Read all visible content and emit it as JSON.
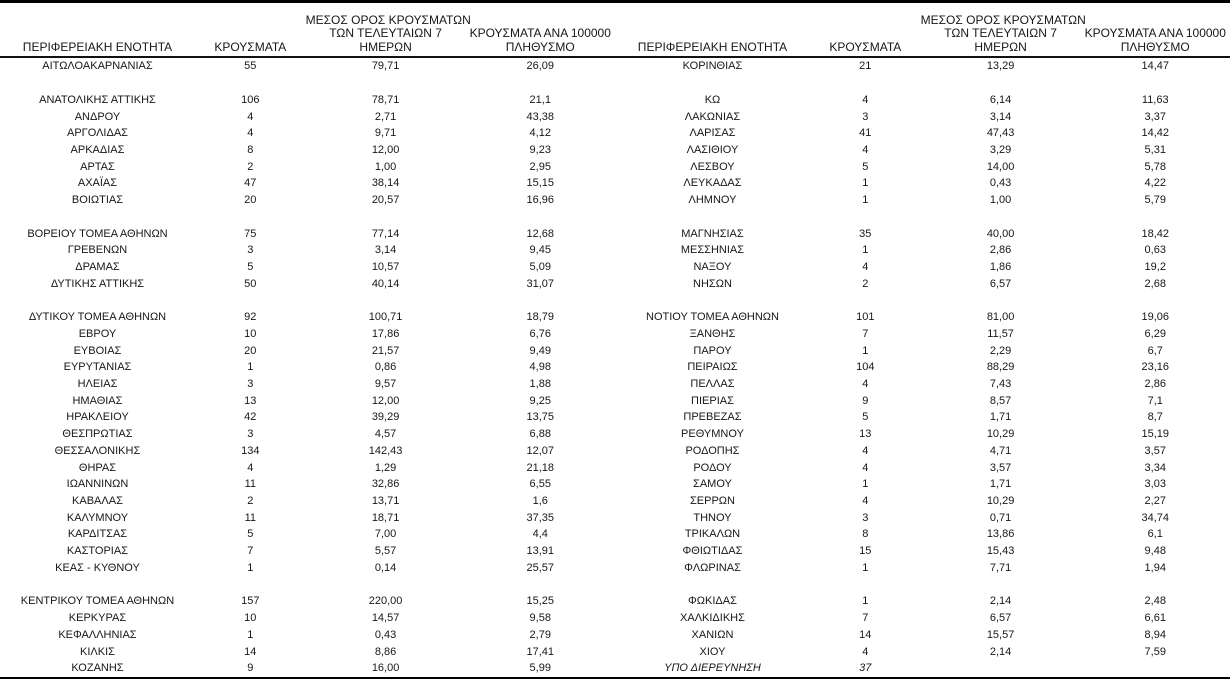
{
  "columns": {
    "region": "ΠΕΡΙΦΕΡΕΙΑΚΗ ΕΝΟΤΗΤΑ",
    "cases": "ΚΡΟΥΣΜΑΤΑ",
    "avg7_lines": [
      "ΜΕΣΟΣ ΟΡΟΣ ΚΡΟΥΣΜΑΤΩΝ",
      "ΤΩΝ ΤΕΛΕΥΤΑΙΩΝ 7",
      "ΗΜΕΡΩΝ"
    ],
    "per100k_lines": [
      "ΚΡΟΥΣΜΑΤΑ ΑΝΑ 100000",
      "ΠΛΗΘΥΣΜΟ"
    ]
  },
  "left_table": {
    "rows": [
      {
        "region": "ΑΙΤΩΛΟΑΚΑΡΝΑΝΙΑΣ",
        "cases": "55",
        "avg7": "79,71",
        "per100k": "26,09"
      },
      {
        "region": "",
        "cases": "",
        "avg7": "",
        "per100k": ""
      },
      {
        "region": "ΑΝΑΤΟΛΙΚΗΣ ΑΤΤΙΚΗΣ",
        "cases": "106",
        "avg7": "78,71",
        "per100k": "21,1"
      },
      {
        "region": "ΑΝΔΡΟΥ",
        "cases": "4",
        "avg7": "2,71",
        "per100k": "43,38"
      },
      {
        "region": "ΑΡΓΟΛΙΔΑΣ",
        "cases": "4",
        "avg7": "9,71",
        "per100k": "4,12"
      },
      {
        "region": "ΑΡΚΑΔΙΑΣ",
        "cases": "8",
        "avg7": "12,00",
        "per100k": "9,23"
      },
      {
        "region": "ΑΡΤΑΣ",
        "cases": "2",
        "avg7": "1,00",
        "per100k": "2,95"
      },
      {
        "region": "ΑΧΑΪΑΣ",
        "cases": "47",
        "avg7": "38,14",
        "per100k": "15,15"
      },
      {
        "region": "ΒΟΙΩΤΙΑΣ",
        "cases": "20",
        "avg7": "20,57",
        "per100k": "16,96"
      },
      {
        "region": "",
        "cases": "",
        "avg7": "",
        "per100k": ""
      },
      {
        "region": "ΒΟΡΕΙΟΥ ΤΟΜΕΑ ΑΘΗΝΩΝ",
        "cases": "75",
        "avg7": "77,14",
        "per100k": "12,68"
      },
      {
        "region": "ΓΡΕΒΕΝΩΝ",
        "cases": "3",
        "avg7": "3,14",
        "per100k": "9,45"
      },
      {
        "region": "ΔΡΑΜΑΣ",
        "cases": "5",
        "avg7": "10,57",
        "per100k": "5,09"
      },
      {
        "region": "ΔΥΤΙΚΗΣ ΑΤΤΙΚΗΣ",
        "cases": "50",
        "avg7": "40,14",
        "per100k": "31,07"
      },
      {
        "region": "",
        "cases": "",
        "avg7": "",
        "per100k": ""
      },
      {
        "region": "ΔΥΤΙΚΟΥ ΤΟΜΕΑ ΑΘΗΝΩΝ",
        "cases": "92",
        "avg7": "100,71",
        "per100k": "18,79"
      },
      {
        "region": "ΕΒΡΟΥ",
        "cases": "10",
        "avg7": "17,86",
        "per100k": "6,76"
      },
      {
        "region": "ΕΥΒΟΙΑΣ",
        "cases": "20",
        "avg7": "21,57",
        "per100k": "9,49"
      },
      {
        "region": "ΕΥΡΥΤΑΝΙΑΣ",
        "cases": "1",
        "avg7": "0,86",
        "per100k": "4,98"
      },
      {
        "region": "ΗΛΕΙΑΣ",
        "cases": "3",
        "avg7": "9,57",
        "per100k": "1,88"
      },
      {
        "region": "ΗΜΑΘΙΑΣ",
        "cases": "13",
        "avg7": "12,00",
        "per100k": "9,25"
      },
      {
        "region": "ΗΡΑΚΛΕΙΟΥ",
        "cases": "42",
        "avg7": "39,29",
        "per100k": "13,75"
      },
      {
        "region": "ΘΕΣΠΡΩΤΙΑΣ",
        "cases": "3",
        "avg7": "4,57",
        "per100k": "6,88"
      },
      {
        "region": "ΘΕΣΣΑΛΟΝΙΚΗΣ",
        "cases": "134",
        "avg7": "142,43",
        "per100k": "12,07"
      },
      {
        "region": "ΘΗΡΑΣ",
        "cases": "4",
        "avg7": "1,29",
        "per100k": "21,18"
      },
      {
        "region": "ΙΩΑΝΝΙΝΩΝ",
        "cases": "11",
        "avg7": "32,86",
        "per100k": "6,55"
      },
      {
        "region": "ΚΑΒΑΛΑΣ",
        "cases": "2",
        "avg7": "13,71",
        "per100k": "1,6"
      },
      {
        "region": "ΚΑΛΥΜΝΟΥ",
        "cases": "11",
        "avg7": "18,71",
        "per100k": "37,35"
      },
      {
        "region": "ΚΑΡΔΙΤΣΑΣ",
        "cases": "5",
        "avg7": "7,00",
        "per100k": "4,4"
      },
      {
        "region": "ΚΑΣΤΟΡΙΑΣ",
        "cases": "7",
        "avg7": "5,57",
        "per100k": "13,91"
      },
      {
        "region": "ΚΕΑΣ - ΚΥΘΝΟΥ",
        "cases": "1",
        "avg7": "0,14",
        "per100k": "25,57"
      },
      {
        "region": "",
        "cases": "",
        "avg7": "",
        "per100k": ""
      },
      {
        "region": "ΚΕΝΤΡΙΚΟΥ ΤΟΜΕΑ ΑΘΗΝΩΝ",
        "cases": "157",
        "avg7": "220,00",
        "per100k": "15,25"
      },
      {
        "region": "ΚΕΡΚΥΡΑΣ",
        "cases": "10",
        "avg7": "14,57",
        "per100k": "9,58"
      },
      {
        "region": "ΚΕΦΑΛΛΗΝΙΑΣ",
        "cases": "1",
        "avg7": "0,43",
        "per100k": "2,79"
      },
      {
        "region": "ΚΙΛΚΙΣ",
        "cases": "14",
        "avg7": "8,86",
        "per100k": "17,41"
      },
      {
        "region": "ΚΟΖΑΝΗΣ",
        "cases": "9",
        "avg7": "16,00",
        "per100k": "5,99"
      }
    ]
  },
  "right_table": {
    "rows": [
      {
        "region": "ΚΟΡΙΝΘΙΑΣ",
        "cases": "21",
        "avg7": "13,29",
        "per100k": "14,47"
      },
      {
        "region": "",
        "cases": "",
        "avg7": "",
        "per100k": ""
      },
      {
        "region": "ΚΩ",
        "cases": "4",
        "avg7": "6,14",
        "per100k": "11,63"
      },
      {
        "region": "ΛΑΚΩΝΙΑΣ",
        "cases": "3",
        "avg7": "3,14",
        "per100k": "3,37"
      },
      {
        "region": "ΛΑΡΙΣΑΣ",
        "cases": "41",
        "avg7": "47,43",
        "per100k": "14,42"
      },
      {
        "region": "ΛΑΣΙΘΙΟΥ",
        "cases": "4",
        "avg7": "3,29",
        "per100k": "5,31"
      },
      {
        "region": "ΛΕΣΒΟΥ",
        "cases": "5",
        "avg7": "14,00",
        "per100k": "5,78"
      },
      {
        "region": "ΛΕΥΚΑΔΑΣ",
        "cases": "1",
        "avg7": "0,43",
        "per100k": "4,22"
      },
      {
        "region": "ΛΗΜΝΟΥ",
        "cases": "1",
        "avg7": "1,00",
        "per100k": "5,79"
      },
      {
        "region": "",
        "cases": "",
        "avg7": "",
        "per100k": ""
      },
      {
        "region": "ΜΑΓΝΗΣΙΑΣ",
        "cases": "35",
        "avg7": "40,00",
        "per100k": "18,42"
      },
      {
        "region": "ΜΕΣΣΗΝΙΑΣ",
        "cases": "1",
        "avg7": "2,86",
        "per100k": "0,63"
      },
      {
        "region": "ΝΑΞΟΥ",
        "cases": "4",
        "avg7": "1,86",
        "per100k": "19,2"
      },
      {
        "region": "ΝΗΣΩΝ",
        "cases": "2",
        "avg7": "6,57",
        "per100k": "2,68"
      },
      {
        "region": "",
        "cases": "",
        "avg7": "",
        "per100k": ""
      },
      {
        "region": "ΝΟΤΙΟΥ ΤΟΜΕΑ ΑΘΗΝΩΝ",
        "cases": "101",
        "avg7": "81,00",
        "per100k": "19,06"
      },
      {
        "region": "ΞΑΝΘΗΣ",
        "cases": "7",
        "avg7": "11,57",
        "per100k": "6,29"
      },
      {
        "region": "ΠΑΡΟΥ",
        "cases": "1",
        "avg7": "2,29",
        "per100k": "6,7"
      },
      {
        "region": "ΠΕΙΡΑΙΩΣ",
        "cases": "104",
        "avg7": "88,29",
        "per100k": "23,16"
      },
      {
        "region": "ΠΕΛΛΑΣ",
        "cases": "4",
        "avg7": "7,43",
        "per100k": "2,86"
      },
      {
        "region": "ΠΙΕΡΙΑΣ",
        "cases": "9",
        "avg7": "8,57",
        "per100k": "7,1"
      },
      {
        "region": "ΠΡΕΒΕΖΑΣ",
        "cases": "5",
        "avg7": "1,71",
        "per100k": "8,7"
      },
      {
        "region": "ΡΕΘΥΜΝΟΥ",
        "cases": "13",
        "avg7": "10,29",
        "per100k": "15,19"
      },
      {
        "region": "ΡΟΔΟΠΗΣ",
        "cases": "4",
        "avg7": "4,71",
        "per100k": "3,57"
      },
      {
        "region": "ΡΟΔΟΥ",
        "cases": "4",
        "avg7": "3,57",
        "per100k": "3,34"
      },
      {
        "region": "ΣΑΜΟΥ",
        "cases": "1",
        "avg7": "1,71",
        "per100k": "3,03"
      },
      {
        "region": "ΣΕΡΡΩΝ",
        "cases": "4",
        "avg7": "10,29",
        "per100k": "2,27"
      },
      {
        "region": "ΤΗΝΟΥ",
        "cases": "3",
        "avg7": "0,71",
        "per100k": "34,74"
      },
      {
        "region": "ΤΡΙΚΑΛΩΝ",
        "cases": "8",
        "avg7": "13,86",
        "per100k": "6,1"
      },
      {
        "region": "ΦΘΙΩΤΙΔΑΣ",
        "cases": "15",
        "avg7": "15,43",
        "per100k": "9,48"
      },
      {
        "region": "ΦΛΩΡΙΝΑΣ",
        "cases": "1",
        "avg7": "7,71",
        "per100k": "1,94"
      },
      {
        "region": "",
        "cases": "",
        "avg7": "",
        "per100k": ""
      },
      {
        "region": "ΦΩΚΙΔΑΣ",
        "cases": "1",
        "avg7": "2,14",
        "per100k": "2,48"
      },
      {
        "region": "ΧΑΛΚΙΔΙΚΗΣ",
        "cases": "7",
        "avg7": "6,57",
        "per100k": "6,61"
      },
      {
        "region": "ΧΑΝΙΩΝ",
        "cases": "14",
        "avg7": "15,57",
        "per100k": "8,94"
      },
      {
        "region": "ΧΙΟΥ",
        "cases": "4",
        "avg7": "2,14",
        "per100k": "7,59"
      },
      {
        "region": "ΥΠΟ ΔΙΕΡΕΥΝΗΣΗ",
        "cases": "37",
        "avg7": "",
        "per100k": "",
        "italic": true
      }
    ]
  }
}
